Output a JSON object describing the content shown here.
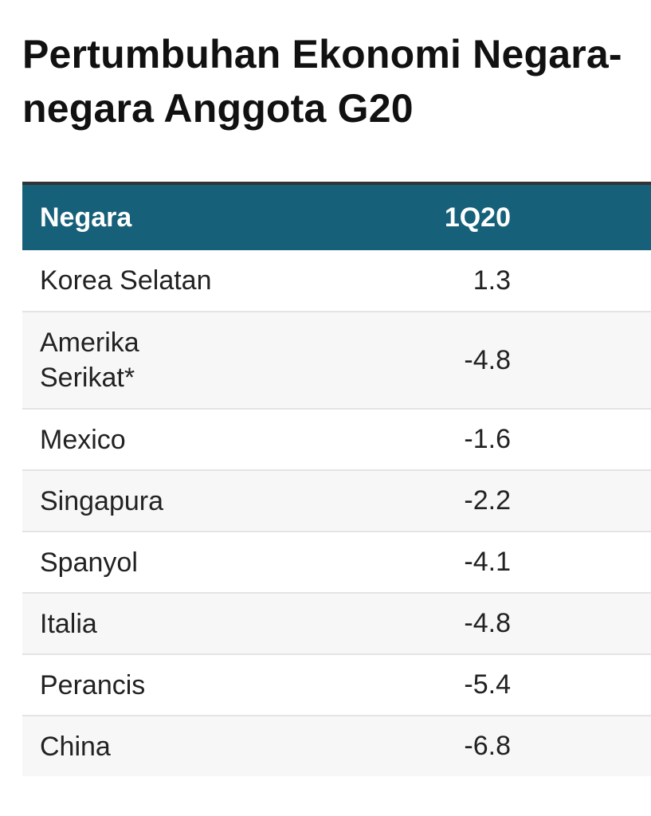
{
  "title": "Pertumbuhan Ekonomi Negara-\nnegara Anggota G20",
  "table": {
    "headers": [
      "Negara",
      "1Q20"
    ],
    "header_color": "#17607a"
  },
  "chart_data": {
    "type": "table",
    "title": "Pertumbuhan Ekonomi Negara-negara Anggota G20",
    "columns": [
      "Negara",
      "1Q20"
    ],
    "rows": [
      {
        "country": "Korea Selatan",
        "value": "1.3"
      },
      {
        "country": "Amerika Serikat*",
        "value": "-4.8"
      },
      {
        "country": "Mexico",
        "value": "-1.6"
      },
      {
        "country": "Singapura",
        "value": "-2.2"
      },
      {
        "country": "Spanyol",
        "value": "-4.1"
      },
      {
        "country": "Italia",
        "value": "-4.8"
      },
      {
        "country": "Perancis",
        "value": "-5.4"
      },
      {
        "country": "China",
        "value": "-6.8"
      }
    ]
  }
}
